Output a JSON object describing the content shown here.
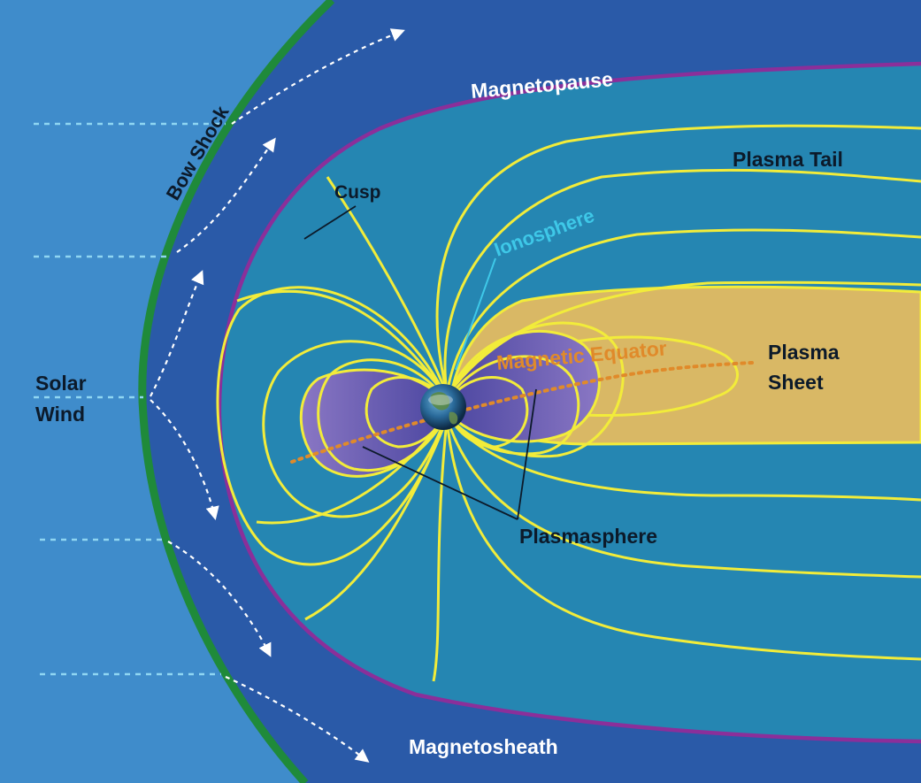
{
  "labels": {
    "bow_shock": "Bow Shock",
    "magnetopause": "Magnetopause",
    "plasma_tail": "Plasma Tail",
    "cusp": "Cusp",
    "ionosphere": "Ionosphere",
    "magnetic_equator": "Magnetic Equator",
    "plasma_sheet_line1": "Plasma",
    "plasma_sheet_line2": "Sheet",
    "solar_wind_line1": "Solar",
    "solar_wind_line2": "Wind",
    "plasmasphere": "Plasmasphere",
    "magnetosheath": "Magnetosheath"
  },
  "colors": {
    "solar_wind_region": "#3f8ccb",
    "magnetosheath_region": "#2a5aa8",
    "magnetosphere_region": "#2586b2",
    "plasma_sheet_region": "#d9b865",
    "plasmasphere_region": "#6f5fae",
    "bow_shock_line": "#1f8a3a",
    "magnetopause_line": "#8b2f9a",
    "field_lines": "#f2ec3a",
    "magnetic_equator": "#e08a2a",
    "ionosphere_label": "#3ec8e8",
    "solar_wind_dashes": "#8fd6f2",
    "white_label": "#ffffff",
    "dark_label": "#0c1a2a"
  },
  "icons": {
    "earth": "earth-globe-icon"
  }
}
